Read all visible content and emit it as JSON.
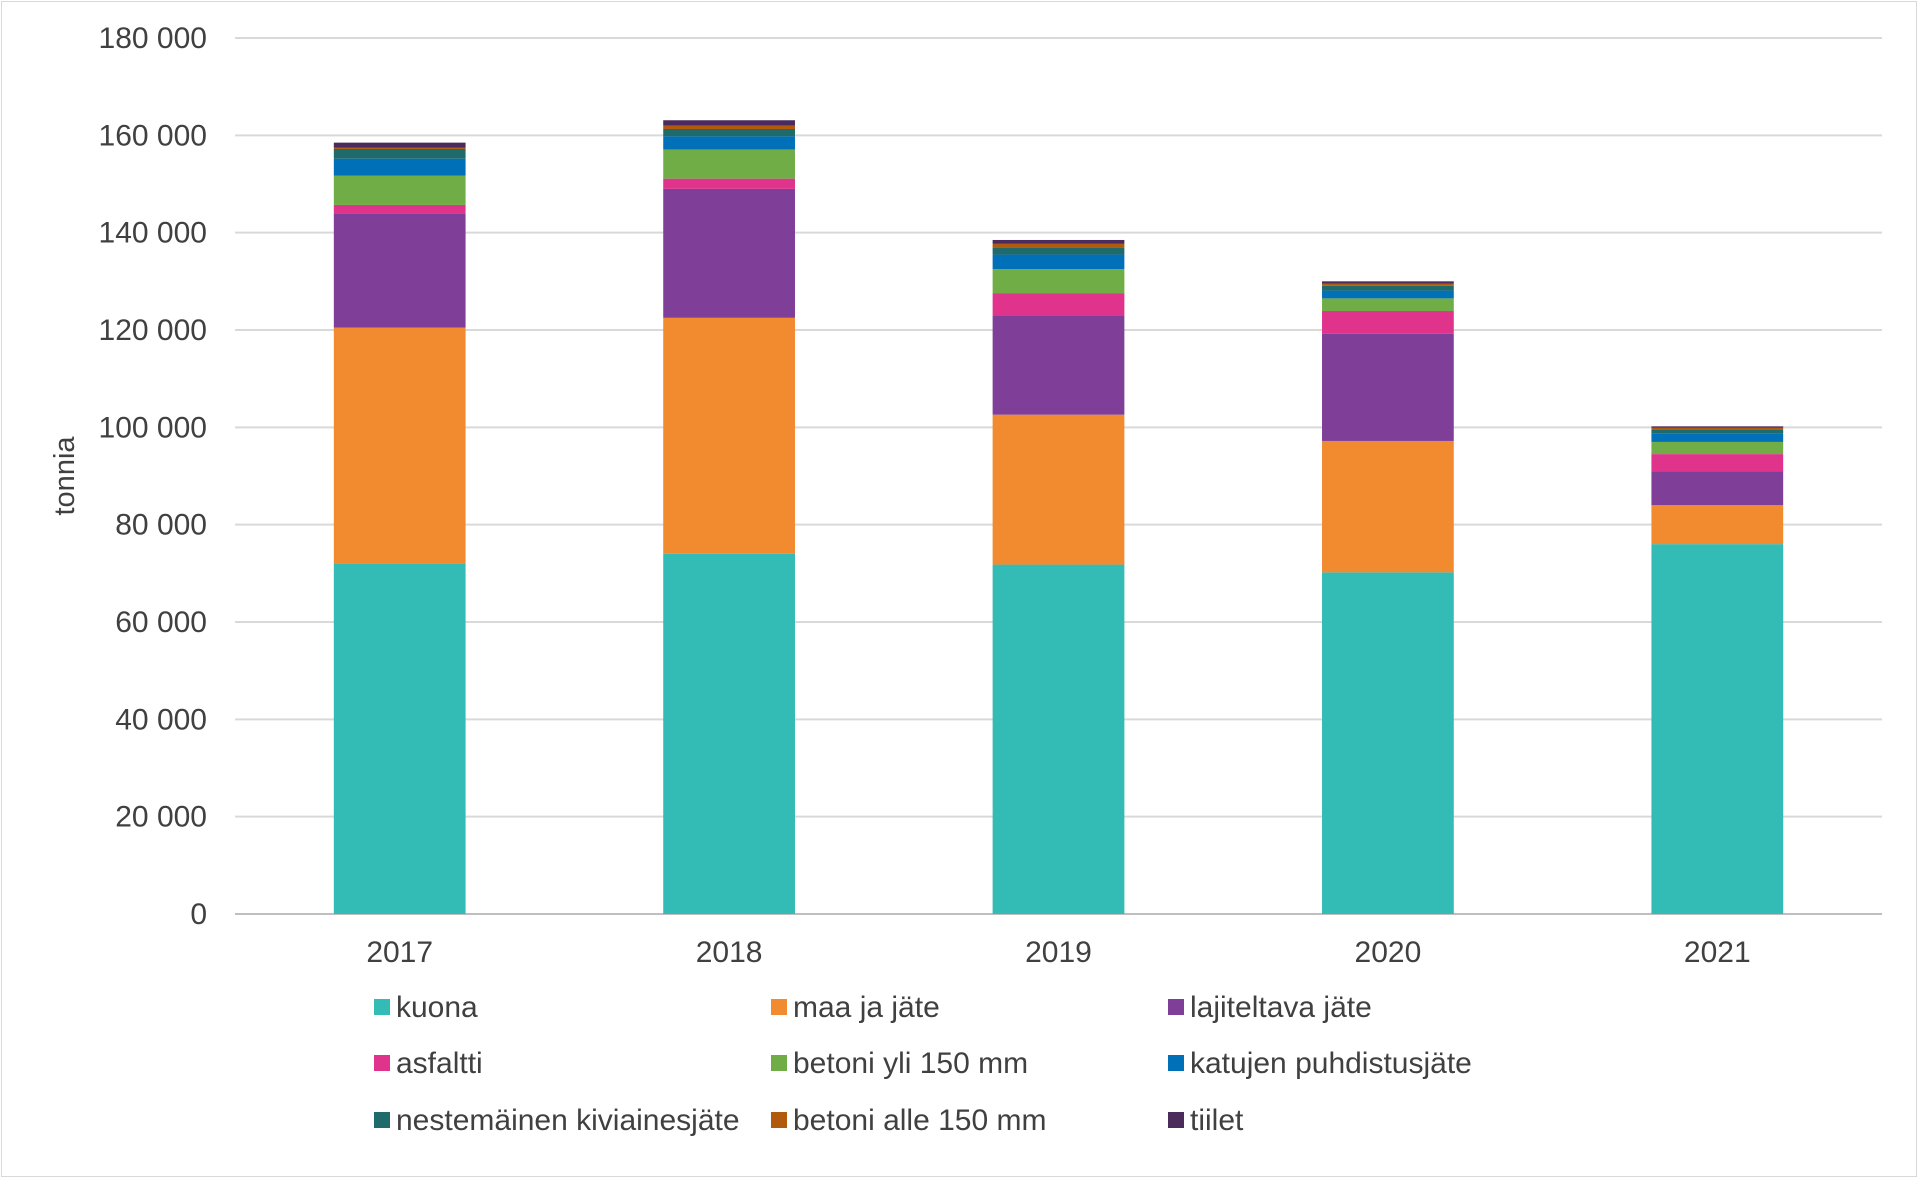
{
  "chart_data": {
    "type": "bar",
    "stacked": true,
    "title": "",
    "xlabel": "",
    "ylabel": "tonnia",
    "ylim": [
      0,
      180000
    ],
    "ytick_values": [
      0,
      20000,
      40000,
      60000,
      80000,
      100000,
      120000,
      140000,
      160000,
      180000
    ],
    "ytick_labels": [
      "0",
      "20 000",
      "40 000",
      "60 000",
      "80 000",
      "100 000",
      "120 000",
      "140 000",
      "160 000",
      "180 000"
    ],
    "grid": true,
    "legend_position": "bottom",
    "categories": [
      "2017",
      "2018",
      "2019",
      "2020",
      "2021"
    ],
    "series": [
      {
        "name": "kuona",
        "color": "#33BBB5",
        "values": [
          72000,
          74000,
          71800,
          70200,
          76000
        ]
      },
      {
        "name": "maa ja jäte",
        "color": "#F28A30",
        "values": [
          48500,
          48500,
          30800,
          27000,
          8000
        ]
      },
      {
        "name": "lajiteltava jäte",
        "color": "#7F3F98",
        "values": [
          23500,
          26500,
          20400,
          22000,
          7000
        ]
      },
      {
        "name": "asfaltti",
        "color": "#E0338C",
        "values": [
          1700,
          2100,
          4500,
          4700,
          3500
        ]
      },
      {
        "name": "betoni yli 150 mm",
        "color": "#70AD47",
        "values": [
          6000,
          6000,
          5000,
          2600,
          2500
        ]
      },
      {
        "name": "katujen puhdistusjäte",
        "color": "#0070B8",
        "values": [
          3500,
          2700,
          3000,
          1600,
          1700
        ]
      },
      {
        "name": "nestemäinen kiviainesjäte",
        "color": "#1F6B6B",
        "values": [
          2000,
          1500,
          1500,
          1000,
          900
        ]
      },
      {
        "name": "betoni alle 150 mm",
        "color": "#B15A0E",
        "values": [
          300,
          700,
          700,
          400,
          300
        ]
      },
      {
        "name": "tiilet",
        "color": "#4B2A5C",
        "values": [
          1000,
          1100,
          800,
          500,
          300
        ]
      }
    ]
  }
}
